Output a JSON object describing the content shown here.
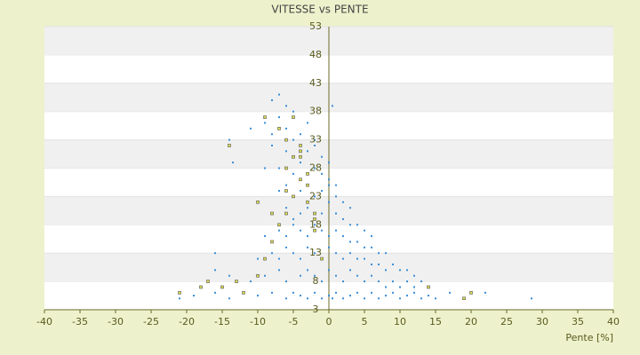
{
  "chart_data": {
    "type": "scatter",
    "title": "VITESSE vs PENTE",
    "x_label": "Pente [%]",
    "xlim": [
      -40,
      40
    ],
    "xticks": [
      -40,
      -35,
      -30,
      -25,
      -20,
      -15,
      -10,
      -5,
      0,
      5,
      10,
      15,
      20,
      25,
      30,
      35,
      40
    ],
    "ylim": [
      3,
      53
    ],
    "yticks": [
      3,
      8,
      13,
      18,
      23,
      28,
      33,
      38,
      43,
      48,
      53
    ],
    "grid": true,
    "series": [
      {
        "color": "#3b8ed6",
        "x": [
          -21,
          -19,
          -16,
          -14,
          -12,
          -10,
          -8,
          -6,
          -5,
          -4,
          -3,
          -2,
          -1,
          0,
          0.5,
          1,
          2,
          3,
          4,
          5,
          6,
          7,
          8,
          9,
          10,
          11,
          12,
          13,
          14,
          15,
          17,
          19,
          22,
          28.5,
          -16,
          -14,
          -11,
          -9,
          -7,
          -6,
          -4,
          -3,
          -2,
          -1,
          0,
          1,
          2,
          3,
          4,
          5,
          6,
          7,
          8,
          9,
          10,
          11,
          12,
          13,
          14,
          -10,
          -8,
          -7,
          -6,
          -5,
          -4,
          -3,
          -2,
          -1,
          0,
          1,
          2,
          3,
          4,
          5,
          6,
          7,
          8,
          9,
          10,
          11,
          12,
          -9,
          -7,
          -6,
          -5,
          -4,
          -3,
          -2,
          -1,
          0,
          1,
          2,
          3,
          4,
          5,
          6,
          7,
          8,
          -8,
          -6,
          -5,
          -4,
          -3,
          -2,
          -1,
          0,
          1,
          2,
          3,
          4,
          5,
          6,
          -7,
          -6,
          -5,
          -4,
          -3,
          -2,
          -1,
          0,
          1,
          2,
          3,
          -9,
          -7,
          -5,
          -4,
          -3,
          -2,
          -1,
          0,
          1,
          -8,
          -6,
          -5,
          -3,
          -2,
          -1,
          0,
          -11,
          -8,
          -6,
          -4,
          -2,
          -14,
          -9,
          -7,
          -5,
          -3,
          0.5,
          -8,
          -7,
          -6,
          -16,
          -13.5
        ],
        "values": [
          5,
          5.5,
          6,
          5,
          6,
          5.5,
          6,
          5,
          6,
          5.5,
          5,
          6,
          5,
          5.5,
          5,
          6,
          5,
          5.5,
          6,
          5,
          6,
          5,
          5.5,
          6,
          5,
          5.5,
          6,
          5,
          5.5,
          5,
          6,
          5,
          6,
          5,
          10,
          9,
          8,
          9,
          10,
          8,
          9,
          10,
          9,
          8,
          10,
          9,
          8,
          10,
          9,
          8,
          9,
          8,
          7,
          8,
          7,
          8,
          7,
          8,
          7,
          12,
          13,
          12,
          14,
          13,
          12,
          14,
          13,
          12,
          14,
          13,
          12,
          13,
          12,
          12,
          11,
          11,
          10,
          11,
          10,
          10,
          9,
          16,
          17,
          16,
          18,
          17,
          16,
          18,
          17,
          16,
          17,
          16,
          15,
          15,
          14,
          14,
          13,
          13,
          20,
          21,
          19,
          20,
          21,
          19,
          20,
          22,
          20,
          19,
          18,
          18,
          17,
          16,
          24,
          25,
          23,
          24,
          25,
          23,
          24,
          25,
          23,
          22,
          21,
          28,
          28,
          27,
          29,
          27,
          28,
          27,
          26,
          25,
          32,
          31,
          33,
          31,
          32,
          30,
          29,
          35,
          34,
          35,
          34,
          33,
          33,
          36,
          37,
          38,
          36,
          39,
          40,
          41,
          39,
          13,
          29
        ]
      },
      {
        "color": "#dcdc50",
        "x": [
          -21,
          -18,
          -17,
          -15,
          -13,
          -12,
          -10,
          -9,
          -8,
          -7,
          -6,
          -5,
          -4,
          -3,
          -2,
          -1,
          -6,
          -5,
          -4,
          -3,
          -2,
          -7,
          -6,
          -5,
          -4,
          -3,
          -10,
          -8,
          -6,
          -4,
          -2,
          -14,
          -9,
          20,
          19,
          14
        ],
        "values": [
          6,
          7,
          8,
          7,
          8,
          6,
          9,
          12,
          15,
          18,
          20,
          23,
          26,
          22,
          17,
          12,
          28,
          30,
          32,
          25,
          19,
          35,
          33,
          37,
          31,
          27,
          22,
          20,
          24,
          30,
          20,
          32,
          37,
          6,
          5,
          7
        ]
      }
    ]
  }
}
